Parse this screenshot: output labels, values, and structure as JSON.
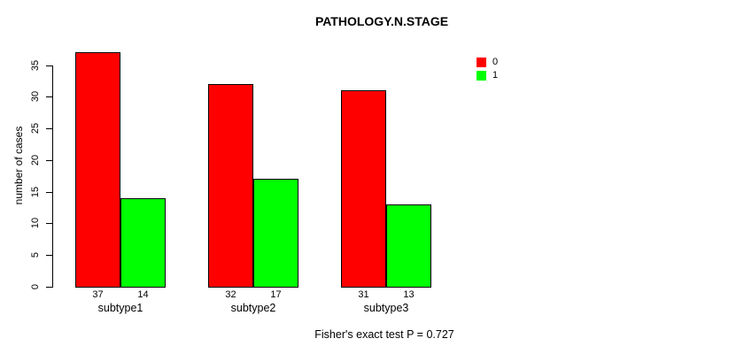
{
  "chart_data": {
    "type": "bar",
    "title": "PATHOLOGY.N.STAGE",
    "ylabel": "number of cases",
    "xlabel": "",
    "categories": [
      "subtype1",
      "subtype2",
      "subtype3"
    ],
    "series": [
      {
        "name": "0",
        "color": "#FF0000",
        "values": [
          37,
          32,
          31
        ]
      },
      {
        "name": "1",
        "color": "#00FF00",
        "values": [
          14,
          17,
          13
        ]
      }
    ],
    "bar_value_labels": [
      [
        37,
        32,
        31
      ],
      [
        14,
        17,
        13
      ]
    ],
    "yticks": [
      0,
      5,
      10,
      15,
      20,
      25,
      30,
      35
    ],
    "ylim": [
      0,
      37
    ],
    "grid": false,
    "legend_position": "top-right-inside",
    "legend_entries": [
      {
        "label": "0",
        "color": "#FF0000"
      },
      {
        "label": "1",
        "color": "#00FF00"
      }
    ],
    "annotation": "Fisher's exact test P = 0.727",
    "axis_color": "#000000",
    "background_color": "#FFFFFF"
  }
}
